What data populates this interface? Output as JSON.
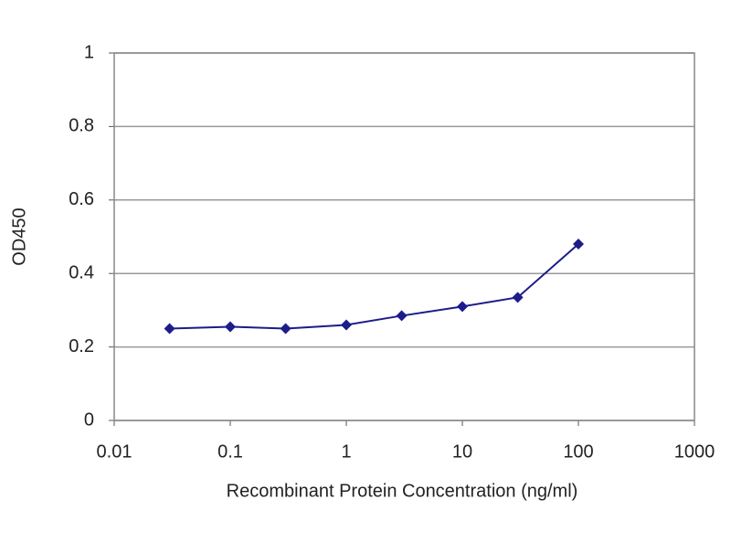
{
  "chart_data": {
    "type": "line",
    "xscale": "log",
    "x": [
      0.03,
      0.1,
      0.3,
      1,
      3,
      10,
      30,
      100
    ],
    "values": [
      0.25,
      0.255,
      0.25,
      0.26,
      0.285,
      0.31,
      0.335,
      0.48
    ],
    "color": "#1c1c8a",
    "xlabel": "Recombinant Protein Concentration (ng/ml)",
    "ylabel": "OD450",
    "xlim": [
      0.01,
      1000
    ],
    "xticks": [
      0.01,
      0.1,
      1,
      10,
      100,
      1000
    ],
    "ylim": [
      0,
      1
    ],
    "yticks": [
      0,
      0.2,
      0.4,
      0.6,
      0.8,
      1
    ],
    "grid": true
  }
}
